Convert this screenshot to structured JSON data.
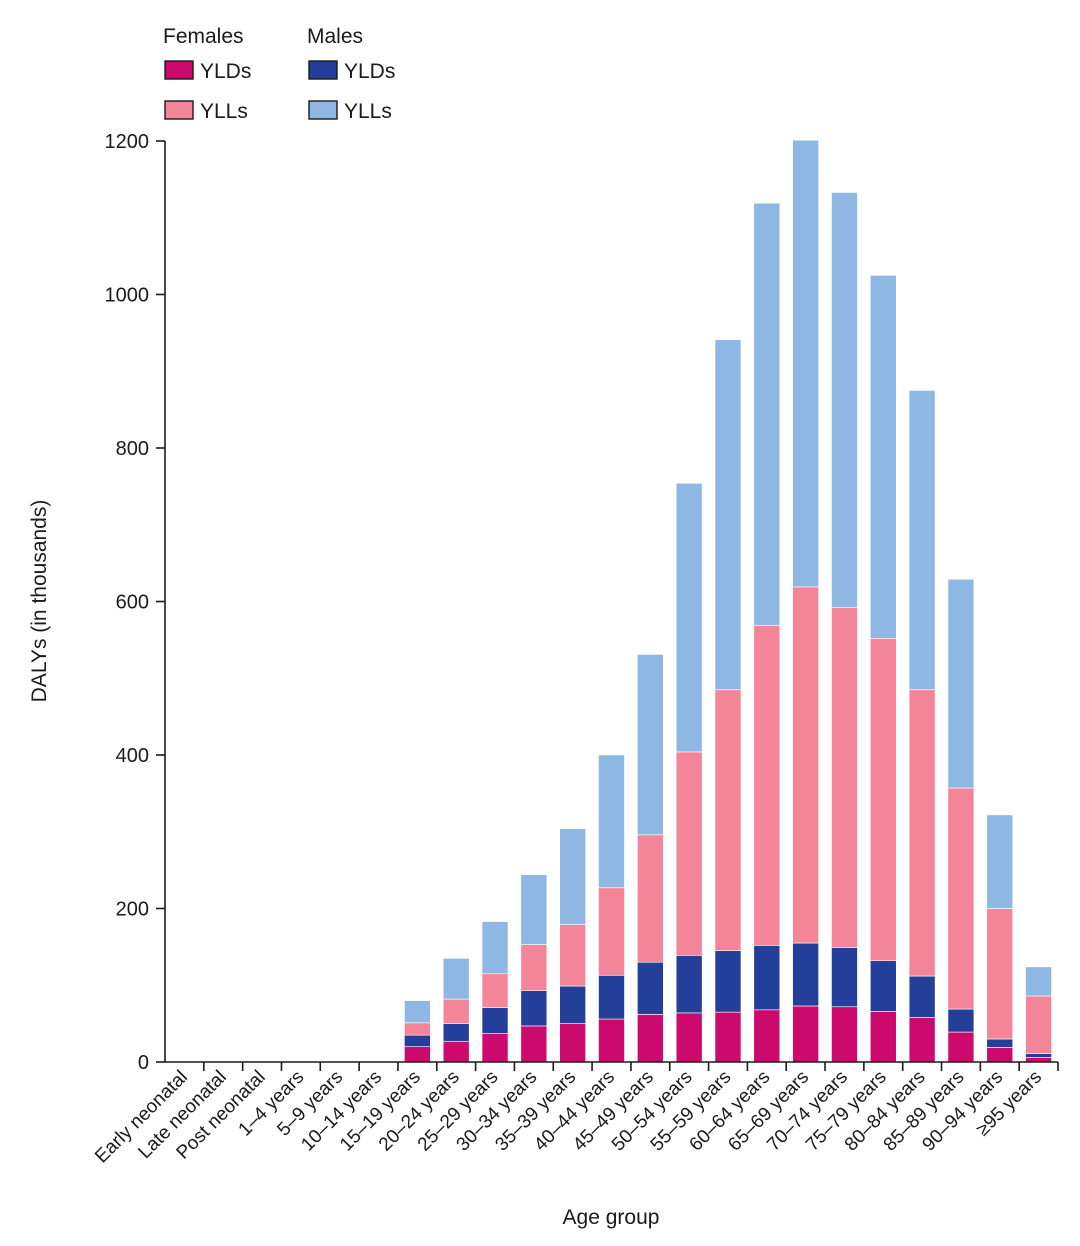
{
  "chart_data": {
    "type": "bar",
    "stacked": true,
    "xlabel": "Age group",
    "ylabel": "DALYs (in thousands)",
    "ylim": [
      0,
      1200
    ],
    "yticks": [
      0,
      200,
      400,
      600,
      800,
      1000,
      1200
    ],
    "grid": false,
    "legend_position": "top-left",
    "legend_groups": [
      {
        "title": "Females",
        "items": [
          "YLDs",
          "YLLs"
        ]
      },
      {
        "title": "Males",
        "items": [
          "YLDs",
          "YLLs"
        ]
      }
    ],
    "categories": [
      "Early neonatal",
      "Late neonatal",
      "Post neonatal",
      "1–4 years",
      "5–9 years",
      "10–14 years",
      "15–19 years",
      "20–24 years",
      "25–29 years",
      "30–34 years",
      "35–39 years",
      "40–44 years",
      "45–49 years",
      "50–54 years",
      "55–59 years",
      "60–64 years",
      "65–69 years",
      "70–74 years",
      "75–79 years",
      "80–84 years",
      "85–89 years",
      "90–94 years",
      "≥95 years"
    ],
    "series": [
      {
        "group": "Females",
        "name": "YLDs",
        "color": "#cc0a6e",
        "values": [
          0,
          0,
          0,
          0,
          0,
          0,
          20,
          27,
          37,
          47,
          50,
          56,
          62,
          64,
          65,
          68,
          73,
          72,
          66,
          58,
          39,
          19,
          6
        ]
      },
      {
        "group": "Males",
        "name": "YLDs",
        "color": "#243f9a",
        "values": [
          0,
          0,
          0,
          0,
          0,
          0,
          15,
          23,
          34,
          46,
          49,
          57,
          68,
          75,
          80,
          84,
          82,
          77,
          66,
          54,
          30,
          11,
          5
        ]
      },
      {
        "group": "Females",
        "name": "YLLs",
        "color": "#f48497",
        "values": [
          0,
          0,
          0,
          0,
          0,
          0,
          16,
          32,
          44,
          60,
          80,
          114,
          166,
          265,
          340,
          417,
          464,
          443,
          420,
          373,
          288,
          170,
          75
        ]
      },
      {
        "group": "Males",
        "name": "YLLs",
        "color": "#8fb7e4",
        "values": [
          0,
          0,
          0,
          0,
          0,
          0,
          29,
          53,
          68,
          91,
          125,
          173,
          235,
          350,
          456,
          550,
          582,
          541,
          473,
          390,
          272,
          122,
          38
        ]
      }
    ]
  }
}
